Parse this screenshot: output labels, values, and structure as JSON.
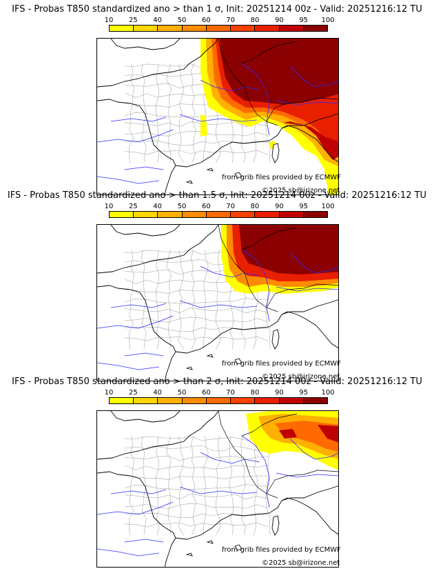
{
  "panels": [
    {
      "title": "IFS - Probas T850  standardized ano > than 1 σ, Init: 20251214 00z - Valid: 20251216:12 TU",
      "threshold_sigma": 1,
      "region_max": "northeast France / Germany / Switzerland / north Italy"
    },
    {
      "title": "IFS - Probas T850  standardized ano > than 1.5 σ, Init: 20251214 00z - Valid: 20251216:12 TU",
      "threshold_sigma": 1.5,
      "region_max": "Germany / Alsace"
    },
    {
      "title": "IFS - Probas T850  standardized ano > than 2 σ, Init: 20251214 00z - Valid: 20251216:12 TU",
      "threshold_sigma": 2,
      "region_max": "southern Germany / Switzerland (scattered)"
    }
  ],
  "colorbar": {
    "ticks": [
      "10",
      "25",
      "40",
      "50",
      "60",
      "70",
      "80",
      "90",
      "95",
      "100"
    ],
    "colors": [
      "#ffff00",
      "#ffd700",
      "#ffb000",
      "#ff8c00",
      "#ff6a00",
      "#ff4000",
      "#e82000",
      "#c00000",
      "#8b0000"
    ]
  },
  "credits": {
    "source": "from grib files provided by ECMWF",
    "copyright": "©2025 sb@irizone.net"
  },
  "map_colors": {
    "coast": "#000000",
    "rivers": "#2a2aff",
    "departments": "#a8a8a8"
  }
}
